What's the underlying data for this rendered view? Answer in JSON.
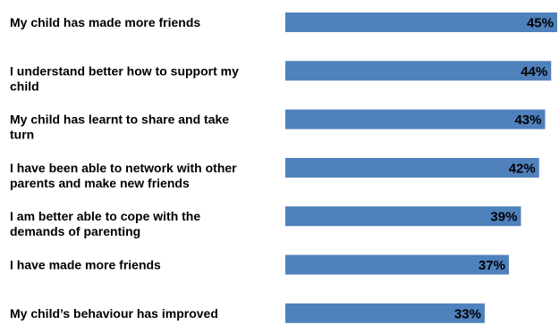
{
  "chart_data": {
    "type": "bar",
    "orientation": "horizontal",
    "categories": [
      [
        "My child has made more friends"
      ],
      [
        "I understand better how to support my",
        "child"
      ],
      [
        "My child has learnt to share and take",
        "turn"
      ],
      [
        "I have been able to network with other",
        "parents and make new friends"
      ],
      [
        "I am better able to cope with the",
        "demands of parenting"
      ],
      [
        "I have made more friends"
      ],
      [
        "My child’s behaviour has improved"
      ]
    ],
    "values": [
      45,
      44,
      43,
      42,
      39,
      37,
      33
    ],
    "value_labels": [
      "45%",
      "44%",
      "43%",
      "42%",
      "39%",
      "37%",
      "33%"
    ],
    "unit": "%",
    "xlim": [
      0,
      45
    ],
    "bar_color": "#4f81bd",
    "grid": false,
    "legend": "none",
    "title": "",
    "xlabel": "",
    "ylabel": ""
  }
}
